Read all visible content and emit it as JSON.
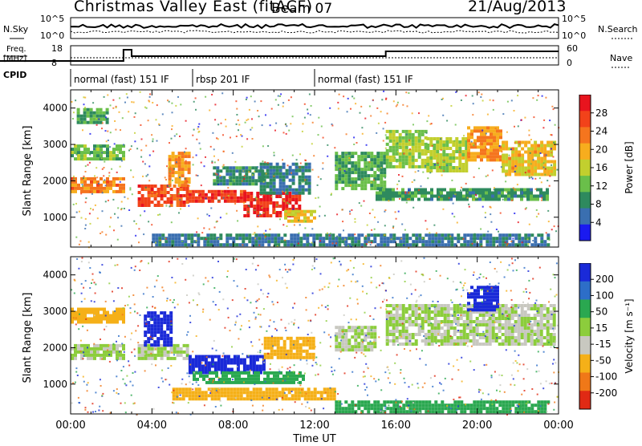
{
  "header": {
    "title": "Christmas Valley East (fitACF)",
    "beam": "Beam 07",
    "date": "21/Aug/2013"
  },
  "top_panels": {
    "nsky_label": "N.Sky",
    "nsky_axis": [
      "10^5",
      "10^0"
    ],
    "nsearch_label": "N.Search",
    "nsearch_axis": [
      "10^5",
      "10^0"
    ],
    "freq_label_1": "Freq.",
    "freq_label_2": "[MHz]",
    "freq_axis": [
      "18",
      "8"
    ],
    "nave_label": "Nave",
    "nave_axis": [
      "60",
      "0"
    ],
    "cpid_label": "CPID",
    "cpid_segments": [
      {
        "label": "normal (fast) 151 IF",
        "start_h": 0,
        "end_h": 6.0
      },
      {
        "label": "rbsp 201 IF",
        "start_h": 6.0,
        "end_h": 12.0
      },
      {
        "label": "normal (fast) 151 IF",
        "start_h": 12.0,
        "end_h": 24.0
      }
    ]
  },
  "power_colorbar": {
    "label": "Power [dB]",
    "ticks": [
      "28",
      "24",
      "20",
      "16",
      "12",
      "8",
      "4"
    ],
    "colors": [
      "#e8141e",
      "#f2421a",
      "#f5751e",
      "#f7ad1e",
      "#c2cf2e",
      "#6abf4a",
      "#2e8a5e",
      "#3a6fb0",
      "#1a1af0"
    ]
  },
  "velocity_colorbar": {
    "label": "Velocity [m s⁻¹]",
    "ticks": [
      "200",
      "100",
      "50",
      "15",
      "-15",
      "-50",
      "-100",
      "-200"
    ],
    "colors": [
      "#1a2ad8",
      "#2d6ec8",
      "#2aa850",
      "#8ccd3c",
      "#c8c8c0",
      "#f5b018",
      "#f07818",
      "#e02a14"
    ]
  },
  "chart_data": [
    {
      "type": "heatmap",
      "title": "Power",
      "xlabel": "Time UT",
      "ylabel": "Slant Range [km]",
      "x_ticks": [
        "00:00",
        "04:00",
        "08:00",
        "12:00",
        "16:00",
        "20:00",
        "00:00"
      ],
      "xlim": [
        0,
        24
      ],
      "y_ticks": [
        "1000",
        "2000",
        "3000",
        "4000"
      ],
      "ylim": [
        180,
        4500
      ],
      "cells": [
        {
          "t0": 0.0,
          "t1": 2.6,
          "r0": 1700,
          "r1": 2100,
          "v": 22
        },
        {
          "t0": 0.0,
          "t1": 2.6,
          "r0": 2600,
          "r1": 3000,
          "v": 11
        },
        {
          "t0": 0.3,
          "t1": 1.8,
          "r0": 3600,
          "r1": 4000,
          "v": 9
        },
        {
          "t0": 3.3,
          "t1": 5.8,
          "r0": 1300,
          "r1": 1900,
          "v": 26
        },
        {
          "t0": 4.8,
          "t1": 5.9,
          "r0": 1900,
          "r1": 2800,
          "v": 20
        },
        {
          "t0": 5.8,
          "t1": 8.5,
          "r0": 1400,
          "r1": 1750,
          "v": 27
        },
        {
          "t0": 8.5,
          "t1": 11.2,
          "r0": 1050,
          "r1": 1700,
          "v": 29
        },
        {
          "t0": 9.3,
          "t1": 11.8,
          "r0": 1700,
          "r1": 2500,
          "v": 6
        },
        {
          "t0": 10.5,
          "t1": 12.0,
          "r0": 850,
          "r1": 1200,
          "v": 17
        },
        {
          "t0": 7.0,
          "t1": 9.5,
          "r0": 1900,
          "r1": 2400,
          "v": 7
        },
        {
          "t0": 13.0,
          "t1": 15.5,
          "r0": 1800,
          "r1": 2800,
          "v": 10
        },
        {
          "t0": 15.5,
          "t1": 17.5,
          "r0": 2400,
          "r1": 3400,
          "v": 13
        },
        {
          "t0": 17.5,
          "t1": 19.5,
          "r0": 2300,
          "r1": 3200,
          "v": 14
        },
        {
          "t0": 19.5,
          "t1": 21.2,
          "r0": 2600,
          "r1": 3500,
          "v": 21
        },
        {
          "t0": 21.2,
          "t1": 23.8,
          "r0": 2200,
          "r1": 3100,
          "v": 18
        },
        {
          "t0": 15.0,
          "t1": 23.5,
          "r0": 1500,
          "r1": 1800,
          "v": 8
        },
        {
          "t0": 4.0,
          "t1": 23.5,
          "r0": 250,
          "r1": 550,
          "v": 5
        }
      ]
    },
    {
      "type": "heatmap",
      "title": "Velocity",
      "xlabel": "Time UT",
      "ylabel": "Slant Range [km]",
      "x_ticks": [
        "00:00",
        "04:00",
        "08:00",
        "12:00",
        "16:00",
        "20:00",
        "00:00"
      ],
      "xlim": [
        0,
        24
      ],
      "y_ticks": [
        "1000",
        "2000",
        "3000",
        "4000"
      ],
      "ylim": [
        180,
        4500
      ],
      "cells": [
        {
          "t0": 0.0,
          "t1": 2.6,
          "r0": 1700,
          "r1": 2100,
          "v": 0
        },
        {
          "t0": 0.0,
          "t1": 2.6,
          "r0": 2700,
          "r1": 3100,
          "v": -60
        },
        {
          "t0": 3.3,
          "t1": 5.8,
          "r0": 1700,
          "r1": 2100,
          "v": 0
        },
        {
          "t0": 3.6,
          "t1": 5.0,
          "r0": 2100,
          "r1": 3000,
          "v": 200
        },
        {
          "t0": 5.8,
          "t1": 9.5,
          "r0": 1350,
          "r1": 1800,
          "v": 200
        },
        {
          "t0": 6.0,
          "t1": 11.5,
          "r0": 1050,
          "r1": 1350,
          "v": 60
        },
        {
          "t0": 9.5,
          "t1": 12.0,
          "r0": 1700,
          "r1": 2300,
          "v": -70
        },
        {
          "t0": 13.0,
          "t1": 15.0,
          "r0": 1900,
          "r1": 2600,
          "v": 0
        },
        {
          "t0": 15.5,
          "t1": 23.8,
          "r0": 2100,
          "r1": 3200,
          "v": 0
        },
        {
          "t0": 19.5,
          "t1": 21.0,
          "r0": 3000,
          "r1": 3700,
          "v": 220
        },
        {
          "t0": 5.0,
          "t1": 13.0,
          "r0": 600,
          "r1": 900,
          "v": -40
        },
        {
          "t0": 13.0,
          "t1": 23.5,
          "r0": 250,
          "r1": 550,
          "v": 40
        }
      ]
    }
  ]
}
